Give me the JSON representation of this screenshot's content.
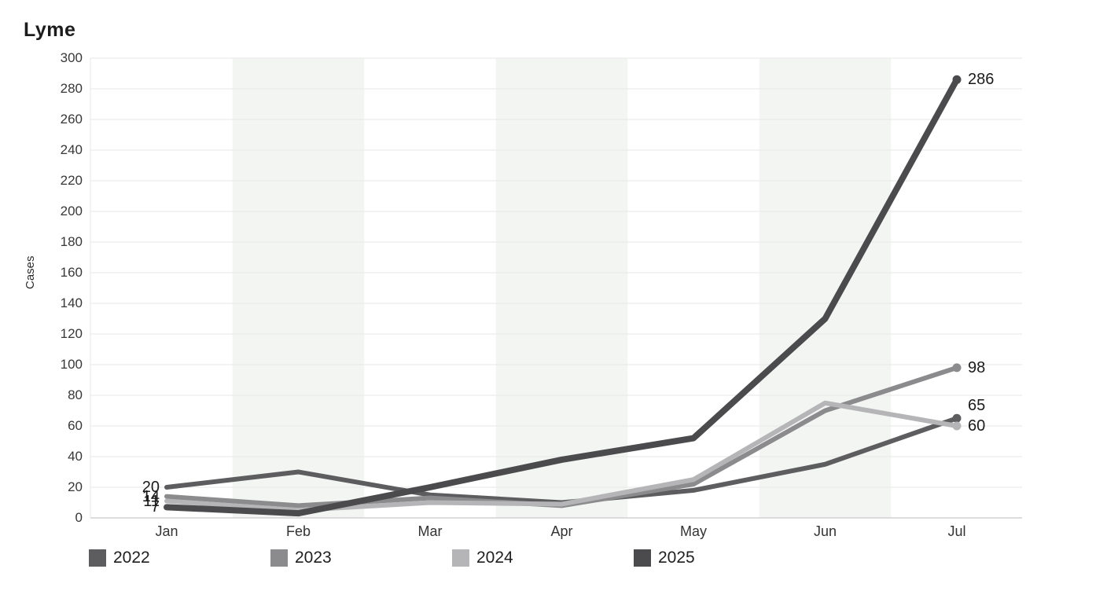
{
  "title": "Lyme",
  "chart_data": {
    "type": "line",
    "title": "Lyme",
    "xlabel": "",
    "ylabel": "Cases",
    "categories": [
      "Jan",
      "Feb",
      "Mar",
      "Apr",
      "May",
      "Jun",
      "Jul"
    ],
    "ylim": [
      0,
      300
    ],
    "yticks": [
      0,
      20,
      40,
      60,
      80,
      100,
      120,
      140,
      160,
      180,
      200,
      220,
      240,
      260,
      280,
      300
    ],
    "grid": "horizontal",
    "shaded_month_bands": [
      "Feb",
      "Apr",
      "Jun"
    ],
    "legend_position": "bottom",
    "series": [
      {
        "name": "2022",
        "color": "#5d5d5f",
        "values": [
          20,
          30,
          15,
          10,
          18,
          35,
          65
        ],
        "first_label": "20",
        "last_label": "65"
      },
      {
        "name": "2023",
        "color": "#8b8b8d",
        "values": [
          14,
          8,
          13,
          8,
          22,
          70,
          98
        ],
        "first_label": "14",
        "last_label": "98"
      },
      {
        "name": "2024",
        "color": "#b5b5b7",
        "values": [
          11,
          5,
          10,
          9,
          25,
          75,
          60
        ],
        "first_label": "11",
        "last_label": "60"
      },
      {
        "name": "2025",
        "color": "#4b4b4d",
        "values": [
          7,
          3,
          20,
          38,
          52,
          130,
          286
        ],
        "first_label": "7",
        "last_label": "286"
      }
    ]
  },
  "colors": {
    "background": "#ffffff",
    "gridline": "#e7e7e7",
    "axis_line": "#d2d2d2",
    "band": "#f3f5f3",
    "tick_text": "#383838",
    "label_text": "#1b1b1b"
  }
}
